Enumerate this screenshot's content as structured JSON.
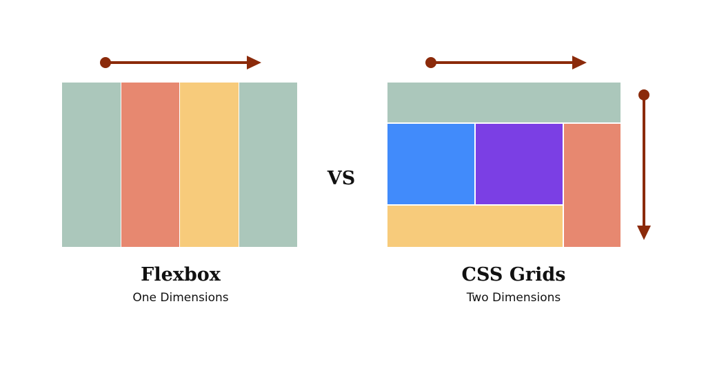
{
  "colors": {
    "sage": "#abc7bb",
    "coral": "#e78870",
    "yellow": "#f7cb7b",
    "blue": "#418bfb",
    "purple": "#7b3fe4",
    "arrow": "#8b2a0a"
  },
  "flexbox": {
    "title": "Flexbox",
    "subtitle": "One Dimensions"
  },
  "versus": "VS",
  "grid": {
    "title": "CSS Grids",
    "subtitle": "Two Dimensions"
  }
}
